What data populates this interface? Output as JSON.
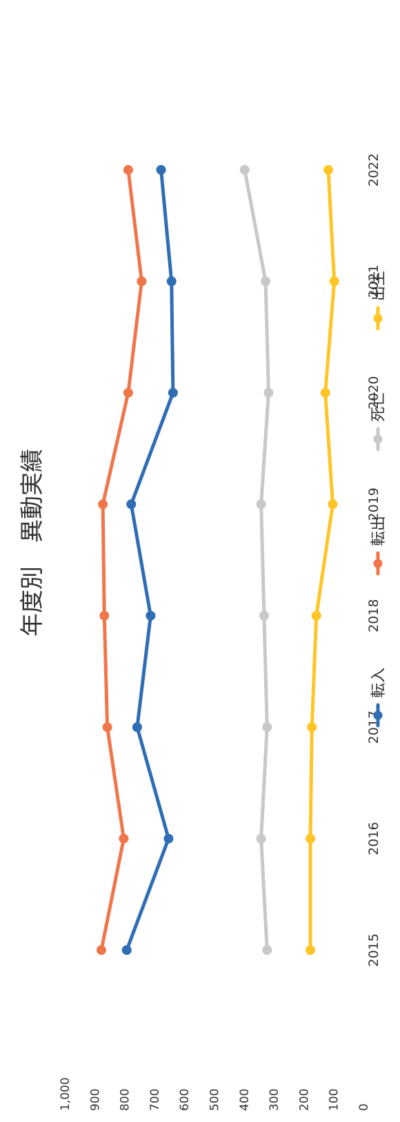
{
  "chart_data": {
    "type": "line",
    "title": "年度別　異動実績",
    "xlabel": "",
    "ylabel": "",
    "categories": [
      "2015",
      "2016",
      "2017",
      "2018",
      "2019",
      "2020",
      "2021",
      "2022"
    ],
    "ylim": [
      0,
      1000
    ],
    "y_ticks": [
      "0",
      "100",
      "200",
      "300",
      "400",
      "500",
      "600",
      "700",
      "800",
      "900",
      "1,000"
    ],
    "grid": false,
    "legend_position": "bottom",
    "series": [
      {
        "name": "転入",
        "color": "#2f6db5",
        "values": [
          795,
          655,
          760,
          715,
          780,
          640,
          645,
          680
        ]
      },
      {
        "name": "転出",
        "color": "#f0764a",
        "values": [
          880,
          805,
          860,
          870,
          875,
          790,
          745,
          790
        ]
      },
      {
        "name": "死亡",
        "color": "#c8c8c8",
        "values": [
          325,
          345,
          325,
          335,
          345,
          320,
          330,
          400
        ]
      },
      {
        "name": "出生",
        "color": "#ffc527",
        "values": [
          180,
          180,
          175,
          160,
          105,
          130,
          100,
          120
        ]
      }
    ]
  }
}
